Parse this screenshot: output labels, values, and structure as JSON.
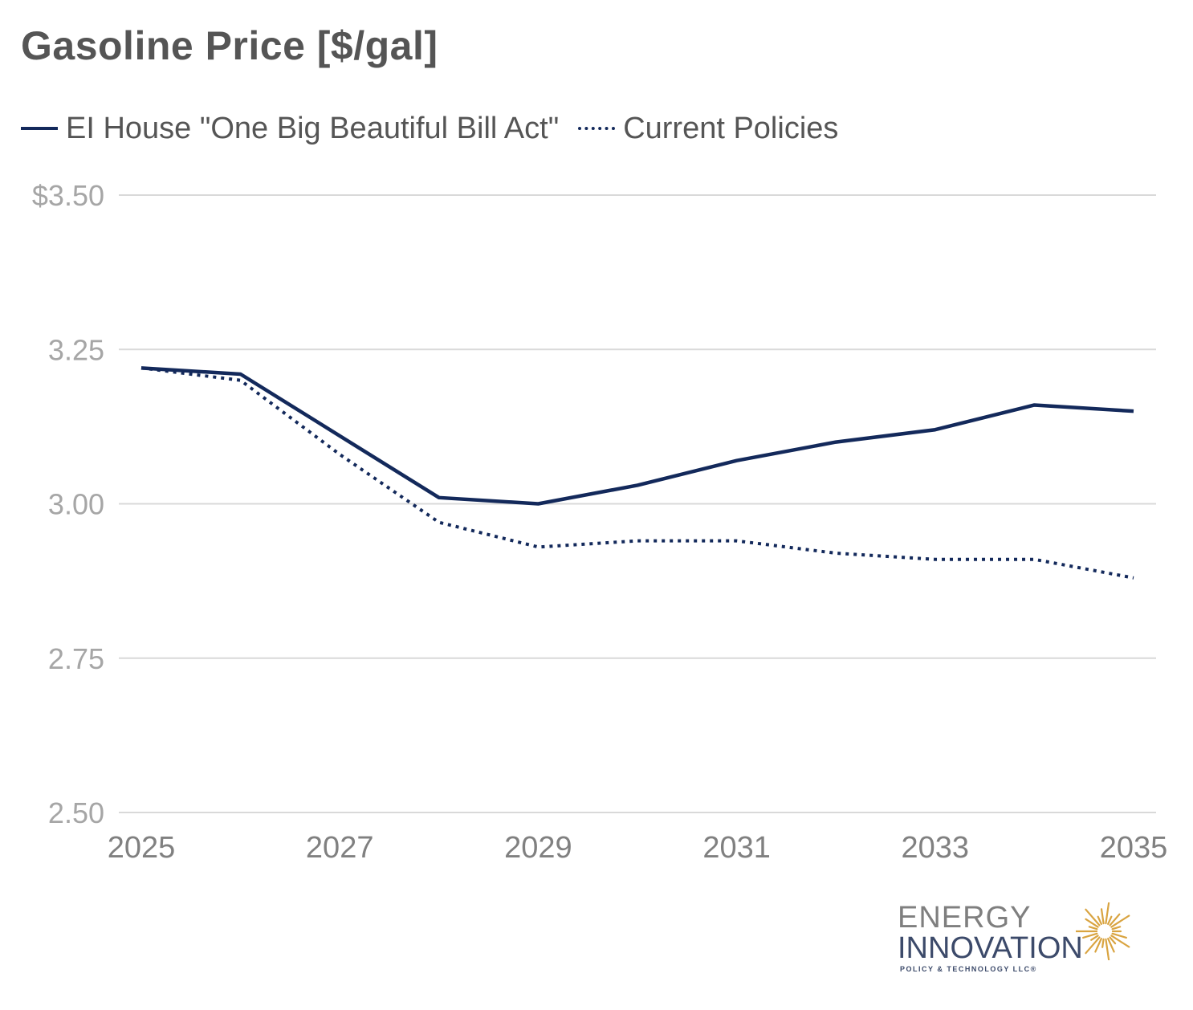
{
  "title": "Gasoline Price [$/gal]",
  "legend": [
    {
      "label": "EI House \"One Big Beautiful Bill Act\"",
      "style": "solid"
    },
    {
      "label": "Current Policies",
      "style": "dotted"
    }
  ],
  "colors": {
    "series": "#13295b",
    "grid": "#d9d9d9",
    "axis_text": "#a6a6a6",
    "x_axis_text": "#808080",
    "logo_burst": "#d9a441"
  },
  "chart_data": {
    "type": "line",
    "title": "Gasoline Price [$/gal]",
    "xlabel": "",
    "ylabel": "",
    "x": [
      2025,
      2026,
      2027,
      2028,
      2029,
      2030,
      2031,
      2032,
      2033,
      2034,
      2035
    ],
    "series": [
      {
        "name": "EI House \"One Big Beautiful Bill Act\"",
        "style": "solid",
        "values": [
          3.22,
          3.21,
          3.11,
          3.01,
          3.0,
          3.03,
          3.07,
          3.1,
          3.12,
          3.16,
          3.15
        ]
      },
      {
        "name": "Current Policies",
        "style": "dotted",
        "values": [
          3.22,
          3.2,
          3.08,
          2.97,
          2.93,
          2.94,
          2.94,
          2.92,
          2.91,
          2.91,
          2.88
        ]
      }
    ],
    "ylim": [
      2.5,
      3.5
    ],
    "xlim": [
      2025,
      2035
    ],
    "y_ticks": [
      2.5,
      2.75,
      3.0,
      3.25,
      3.5
    ],
    "y_tick_labels": [
      "2.50",
      "2.75",
      "3.00",
      "3.25",
      "$3.50"
    ],
    "x_ticks": [
      2025,
      2027,
      2029,
      2031,
      2033,
      2035
    ],
    "x_tick_labels": [
      "2025",
      "2027",
      "2029",
      "2031",
      "2033",
      "2035"
    ],
    "grid": true,
    "legend_position": "top-left"
  },
  "logo": {
    "line1": "ENERGY",
    "line2": "INNOVATION",
    "line3": "POLICY & TECHNOLOGY LLC®",
    "icon": "sunburst-icon"
  }
}
